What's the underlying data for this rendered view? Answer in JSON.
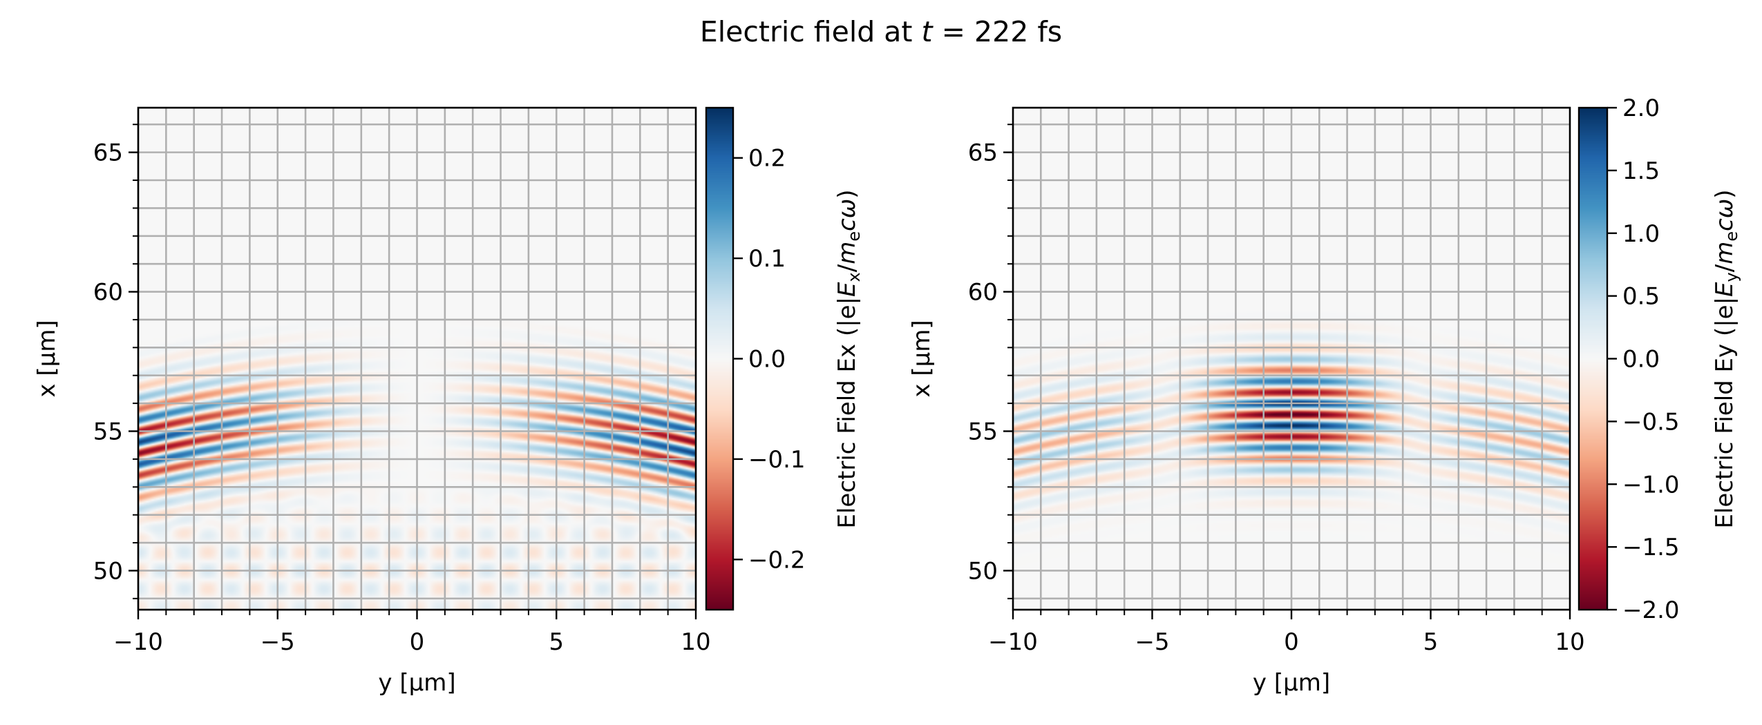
{
  "title": {
    "prefix": "Electric field at ",
    "var": "t",
    "suffix": " = 222 fs"
  },
  "colormap": "RdBu",
  "colormap_stops": [
    "#67001f",
    "#b2182b",
    "#d6604d",
    "#f4a582",
    "#fddbc7",
    "#f7f7f7",
    "#d1e5f0",
    "#92c5de",
    "#4393c3",
    "#2166ac",
    "#053061"
  ],
  "grid": true,
  "grid_color": "#b0b0b0",
  "chart_data": [
    {
      "type": "heatmap",
      "field": "Ex",
      "xlabel": "y [µm]",
      "ylabel": "x [µm]",
      "xlim": [
        -10,
        10
      ],
      "ylim": [
        48.6,
        66.6
      ],
      "xticks": [
        "−10",
        "−5",
        "0",
        "5",
        "10"
      ],
      "xtick_values": [
        -10,
        -5,
        0,
        5,
        10
      ],
      "yticks": [
        "50",
        "55",
        "60",
        "65"
      ],
      "ytick_values": [
        50,
        55,
        60,
        65
      ],
      "colorbar": {
        "range": [
          -0.25,
          0.25
        ],
        "ticks": [
          "−0.2",
          "−0.1",
          "0.0",
          "0.1",
          "0.2"
        ],
        "tick_values": [
          -0.2,
          -0.1,
          0.0,
          0.1,
          0.2
        ],
        "label": {
          "pre": "Electric Field Ex (|e|",
          "E": "E",
          "sub": "x",
          "slash": "/",
          "m": "m",
          "msub": "e",
          "cw": "cω",
          "post": ")"
        }
      }
    },
    {
      "type": "heatmap",
      "field": "Ey",
      "xlabel": "y [µm]",
      "ylabel": "x [µm]",
      "xlim": [
        -10,
        10
      ],
      "ylim": [
        48.6,
        66.6
      ],
      "xticks": [
        "−10",
        "−5",
        "0",
        "5",
        "10"
      ],
      "xtick_values": [
        -10,
        -5,
        0,
        5,
        10
      ],
      "yticks": [
        "50",
        "55",
        "60",
        "65"
      ],
      "ytick_values": [
        50,
        55,
        60,
        65
      ],
      "colorbar": {
        "range": [
          -2.0,
          2.0
        ],
        "ticks": [
          "−2.0",
          "−1.5",
          "−1.0",
          "−0.5",
          "0.0",
          "0.5",
          "1.0",
          "1.5",
          "2.0"
        ],
        "tick_values": [
          -2.0,
          -1.5,
          -1.0,
          -0.5,
          0.0,
          0.5,
          1.0,
          1.5,
          2.0
        ],
        "label": {
          "pre": "Electric Field Ey (|e|",
          "E": "E",
          "sub": "y",
          "slash": "/",
          "m": "m",
          "msub": "e",
          "cw": "cω",
          "post": ")"
        }
      }
    }
  ]
}
